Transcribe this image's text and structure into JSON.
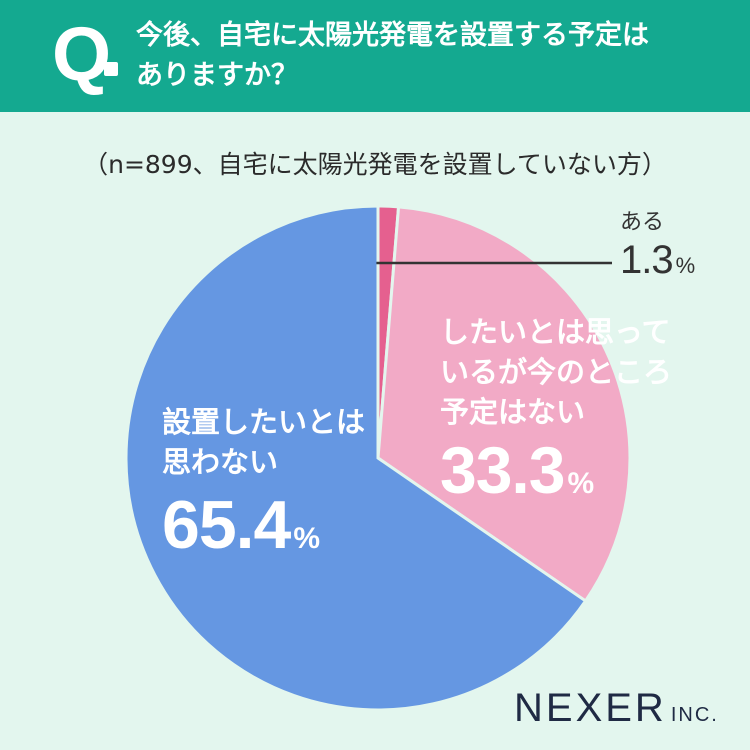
{
  "header": {
    "q_mark": "Q",
    "question_line1": "今後、自宅に太陽光発電を設置する予定は",
    "question_line2": "ありますか？"
  },
  "sample_note": "（n=899、自宅に太陽光発電を設置していない方）",
  "chart_data": {
    "type": "pie",
    "slices": [
      {
        "label": "ある",
        "value": 1.3,
        "unit": "%",
        "color": "#e5608f"
      },
      {
        "label": "したいとは思っているが今のところ予定はない",
        "value": 33.3,
        "unit": "%",
        "color": "#f2aac6"
      },
      {
        "label": "設置したいとは思わない",
        "value": 65.4,
        "unit": "%",
        "color": "#6597e2"
      }
    ],
    "start": "12 o'clock",
    "direction": "clockwise"
  },
  "labels": {
    "no": {
      "line1": "設置したいとは",
      "line2": "思わない",
      "value": "65.4",
      "unit": "%"
    },
    "maybe": {
      "line1": "したいとは思って",
      "line2": "いるが今のところ",
      "line3": "予定はない",
      "value": "33.3",
      "unit": "%"
    },
    "yes": {
      "line1": "ある",
      "value": "1.3",
      "unit": "%"
    }
  },
  "logo": {
    "name": "NEXER",
    "suffix": "INC."
  }
}
